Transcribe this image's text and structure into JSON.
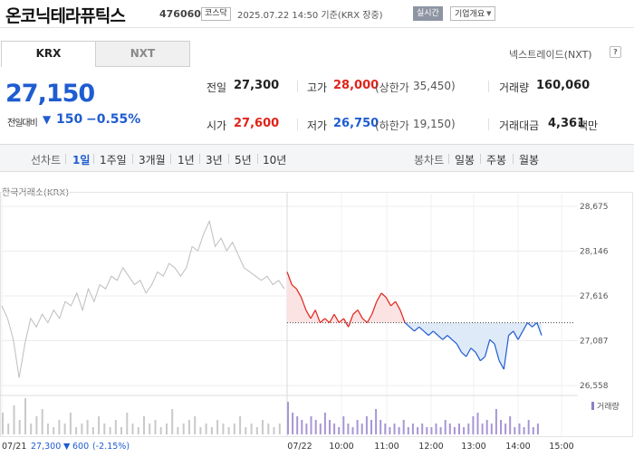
{
  "header": {
    "stock_name": "온코닉테라퓨틱스",
    "stock_code": "476060",
    "market": "코스닥",
    "datetime": "2025.07.22 14:50 기준(KRX 장중)",
    "realtime": "실시간",
    "company_info": "기업개요"
  },
  "tabs": {
    "krx": "KRX",
    "nxt": "NXT"
  },
  "nextrade": {
    "label": "넥스트레이드(NXT)",
    "help": "?"
  },
  "price": {
    "current": "27,150",
    "prev_label": "전일대비",
    "change_arrow": "▼",
    "change": "150",
    "change_pct": "−0.55%"
  },
  "stats": {
    "prev_close_label": "전일",
    "prev_close": "27,300",
    "high_label": "고가",
    "high": "28,000",
    "upper_limit_label": "(상한가",
    "upper_limit": "35,450)",
    "volume_label": "거래량",
    "volume": "160,060",
    "open_label": "시가",
    "open": "27,600",
    "low_label": "저가",
    "low": "26,750",
    "lower_limit_label": "(하한가",
    "lower_limit": "19,150)",
    "value_label": "거래대금",
    "value": "4,361",
    "value_unit": "백만"
  },
  "toolbar": {
    "line_chart": "선차트",
    "periods": [
      "1일",
      "1주일",
      "3개월",
      "1년",
      "3년",
      "5년",
      "10년"
    ],
    "active_period": "1일",
    "candle_chart": "봉차트",
    "candles": [
      "일봉",
      "주봉",
      "월봉"
    ]
  },
  "chart_label": "한국거래소(KRX)",
  "colors": {
    "up": "#e0231a",
    "down": "#1f5cd1",
    "prev_day_line": "#bdbdbd"
  },
  "chart_data": {
    "type": "line",
    "ylim": [
      26558,
      28675
    ],
    "y_ticks": [
      "28,675",
      "28,146",
      "27,616",
      "27,087",
      "26,558"
    ],
    "x_ticks": [
      "07/21",
      "07/22",
      "10:00",
      "11:00",
      "12:00",
      "13:00",
      "14:00",
      "15:00"
    ],
    "reference_price": 27300,
    "volume_legend": "거래량",
    "footer": {
      "date": "07/21",
      "close": "27,300",
      "arrow": "▼",
      "change": "600",
      "pct": "(-2.15%)"
    },
    "series": [
      {
        "values": [
          27500,
          27350,
          27100,
          26650,
          27050,
          27350,
          27250,
          27400,
          27300,
          27450,
          27350,
          27550,
          27500,
          27650,
          27450,
          27700,
          27550,
          27750,
          27700,
          27850,
          27800,
          27950,
          27850,
          27750,
          27800,
          27650,
          27750,
          27900,
          27850,
          28000,
          27950,
          27850,
          27950,
          28200,
          28150,
          28350,
          28500,
          28200,
          28300,
          28150,
          28250,
          28100,
          27950,
          27900,
          27850,
          27800,
          27850,
          27750,
          27800,
          27700
        ]
      },
      {
        "values": [
          27900,
          27750,
          27700,
          27600,
          27450,
          27350,
          27450,
          27300,
          27350,
          27300,
          27400,
          27300,
          27350,
          27250,
          27400,
          27450,
          27350,
          27300,
          27400,
          27550,
          27650,
          27600,
          27500,
          27550,
          27450,
          27300,
          27250,
          27200,
          27250,
          27200,
          27150,
          27200,
          27150,
          27100,
          27150,
          27100,
          27050,
          26950,
          26900,
          27000,
          26950,
          26850,
          26900,
          27100,
          27050,
          26850,
          26750,
          27150,
          27200,
          27100,
          27200,
          27300,
          27250,
          27300,
          27150
        ]
      }
    ],
    "volume_series": [
      {
        "values": [
          6,
          3,
          8,
          4,
          10,
          3,
          5,
          7,
          3,
          2,
          4,
          3,
          6,
          2,
          3,
          4,
          2,
          5,
          3,
          2,
          4,
          2,
          6,
          3,
          2,
          5,
          3,
          4,
          2,
          3,
          7,
          2,
          3,
          4,
          5,
          2,
          3,
          2,
          4,
          3,
          2,
          3,
          5,
          2,
          3,
          2,
          4,
          3,
          2,
          3
        ]
      },
      {
        "values": [
          9,
          6,
          5,
          4,
          3,
          5,
          4,
          3,
          6,
          4,
          3,
          2,
          5,
          3,
          2,
          4,
          3,
          5,
          4,
          7,
          4,
          3,
          2,
          3,
          2,
          4,
          2,
          3,
          2,
          3,
          2,
          2,
          3,
          2,
          4,
          3,
          2,
          3,
          2,
          3,
          5,
          6,
          3,
          4,
          3,
          7,
          4,
          3,
          5,
          2,
          3,
          2,
          4,
          2,
          3
        ]
      }
    ]
  }
}
